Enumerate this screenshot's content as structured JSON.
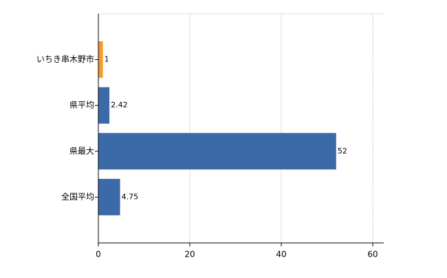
{
  "chart_data": {
    "type": "bar",
    "orientation": "horizontal",
    "categories": [
      "いちき串木野市",
      "県平均",
      "県最大",
      "全国平均"
    ],
    "values": [
      1,
      2.42,
      52,
      4.75
    ],
    "colors": [
      "#f39c2c",
      "#3c6aa8",
      "#3c6aa8",
      "#3c6aa8"
    ],
    "xlim": [
      0,
      62.4
    ],
    "xticks": [
      0,
      20,
      40,
      60
    ],
    "grid": true
  }
}
